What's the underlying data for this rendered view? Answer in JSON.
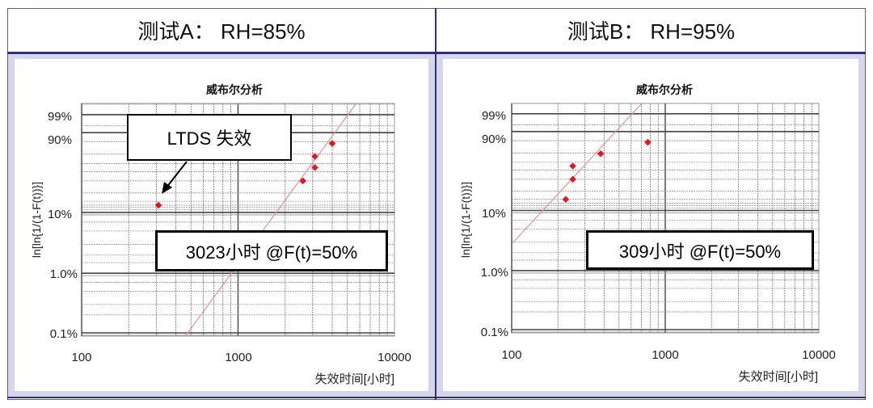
{
  "headers": {
    "test_a": "测试A：  RH=85%",
    "test_b": "测试B：  RH=95%"
  },
  "colors": {
    "border": "#2e2e85",
    "panel_bg": "#d6d6ea",
    "data_point": "#e8141c",
    "fit_line": "#f0a0a0",
    "grid": "#555555"
  },
  "chart_data": [
    {
      "type": "scatter",
      "title": "威布尔分析",
      "panel_header": "测试A：  RH=85%",
      "xlabel": "失效时间[小时]",
      "ylabel": "ln[ln{1/(1-F(t))}]",
      "x_scale": "log",
      "xlim": [
        100,
        10000
      ],
      "x_ticks": [
        "100",
        "1000",
        "10000"
      ],
      "y_scale": "weibull",
      "y_ticks": [
        "99%",
        "90%",
        "10%",
        "1.0%",
        "0.1%"
      ],
      "grid": true,
      "series": [
        {
          "name": "failures",
          "x": [
            310,
            2600,
            3100,
            3100,
            4000
          ],
          "y_pct": [
            13,
            30,
            45,
            60,
            78
          ]
        },
        {
          "name": "weibull_fit",
          "type": "line",
          "x": [
            470,
            4400
          ],
          "y_pct": [
            0.1,
            99.9
          ]
        }
      ],
      "annotations": [
        {
          "text": "LTDS 失效",
          "arrow_to": {
            "x": 310,
            "y_pct": 13
          }
        },
        {
          "text": "3023小时 @F(t)=50%"
        }
      ]
    },
    {
      "type": "scatter",
      "title": "威布尔分析",
      "panel_header": "测试B：  RH=95%",
      "xlabel": "失效时间[小时]",
      "ylabel": "ln[ln{1/(1-F(t))}]",
      "x_scale": "log",
      "xlim": [
        100,
        10000
      ],
      "x_ticks": [
        "100",
        "1000",
        "10000"
      ],
      "y_scale": "weibull",
      "y_ticks": [
        "99%",
        "90%",
        "10%",
        "1.0%",
        "0.1%"
      ],
      "grid": true,
      "series": [
        {
          "name": "failures",
          "x": [
            225,
            250,
            250,
            380,
            770
          ],
          "y_pct": [
            15,
            30,
            45,
            62,
            78
          ]
        },
        {
          "name": "weibull_fit",
          "type": "line",
          "x": [
            100,
            700
          ],
          "y_pct": [
            3.5,
            99.9
          ]
        }
      ],
      "annotations": [
        {
          "text": "309小时 @F(t)=50%"
        }
      ]
    }
  ],
  "chart_a": {
    "title": "威布尔分析",
    "xlabel": "失效时间[小时]",
    "ylabel": "ln[ln{1/(1-F(t))}]",
    "x_ticks": [
      "100",
      "1000",
      "10000"
    ],
    "y_ticks": [
      "99%",
      "90%",
      "10%",
      "1.0%",
      "0.1%"
    ],
    "callout_ltds": "LTDS 失效",
    "callout_result": "3023小时 @F(t)=50%"
  },
  "chart_b": {
    "title": "威布尔分析",
    "xlabel": "失效时间[小时]",
    "ylabel": "ln[ln{1/(1-F(t))}]",
    "x_ticks": [
      "100",
      "1000",
      "10000"
    ],
    "y_ticks": [
      "99%",
      "90%",
      "10%",
      "1.0%",
      "0.1%"
    ],
    "callout_result": "309小时 @F(t)=50%"
  }
}
